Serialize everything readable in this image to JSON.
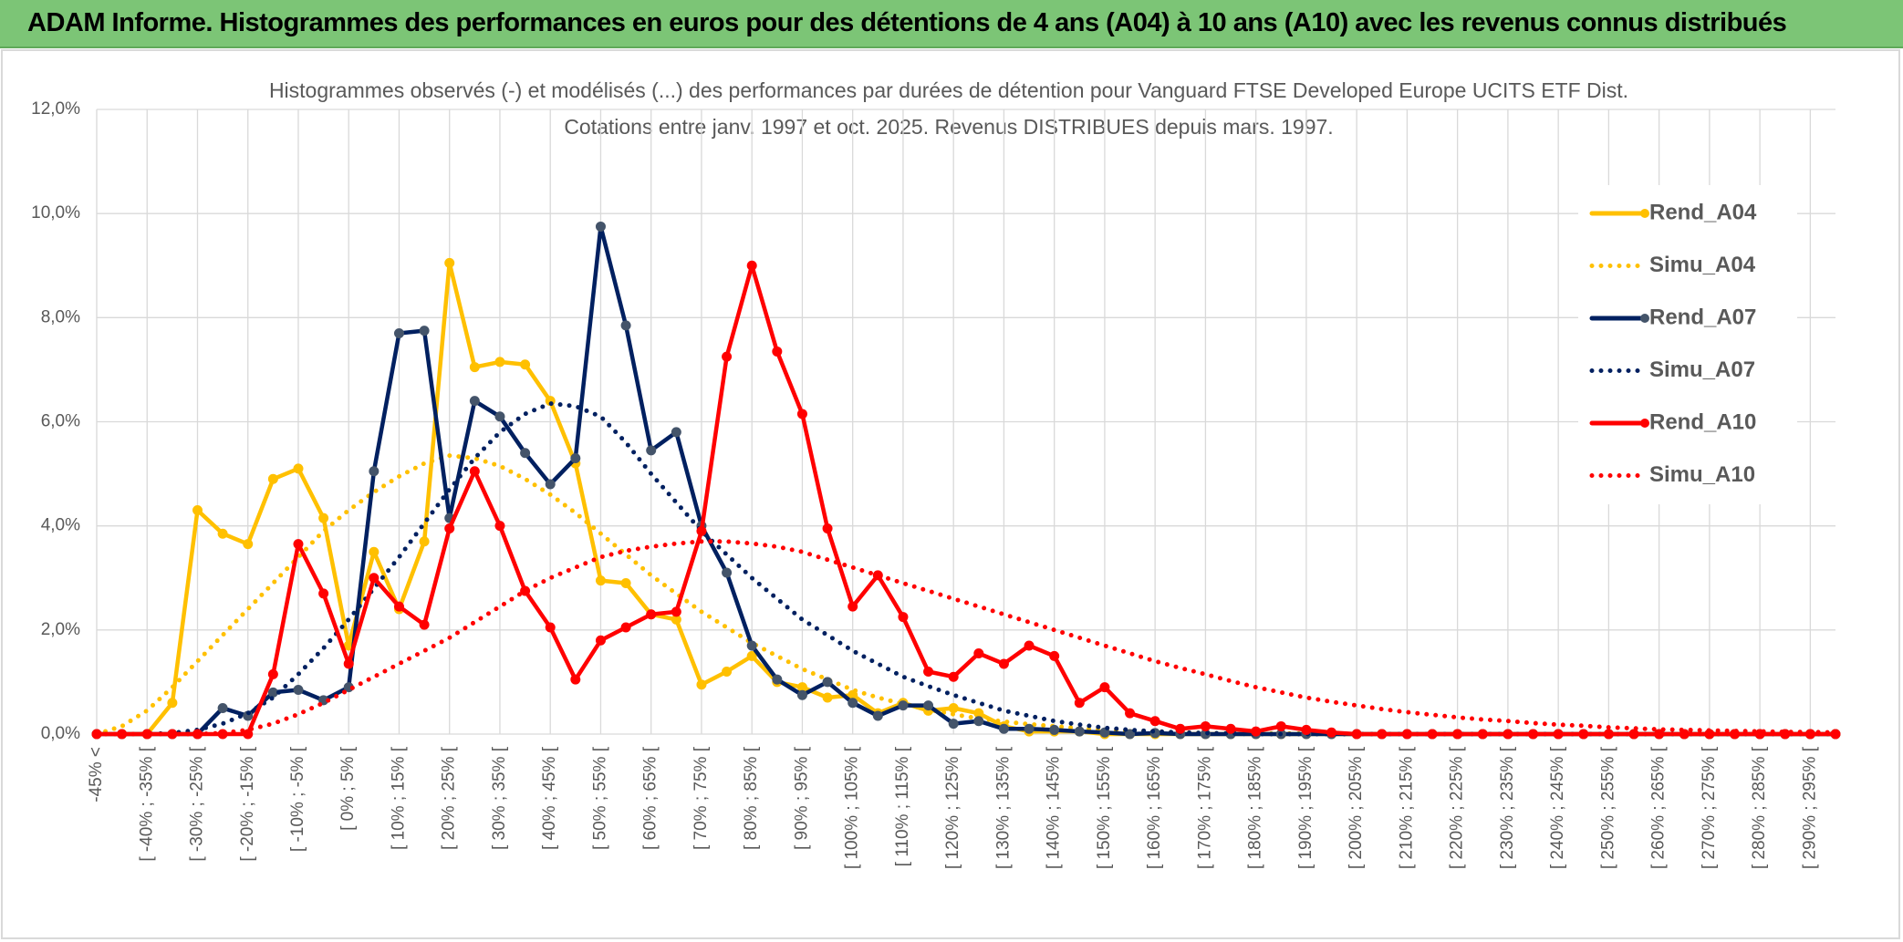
{
  "header": {
    "title": "ADAM Informe. Histogrammes des performances en euros pour des détentions de 4 ans (A04) à 10 ans (A10) avec les revenus connus distribués"
  },
  "chart_data": {
    "type": "line",
    "title": "Histogrammes observés (-) et modélisés (...) des performances par durées de détention pour Vanguard FTSE Developed Europe UCITS ETF Dist.",
    "subtitle": "Cotations entre janv. 1997 et oct. 2025. Revenus DISTRIBUES depuis mars. 1997.",
    "categories": [
      "-45% <",
      null,
      "[ -40% ; -35% [",
      null,
      "[ -30% ; -25% [",
      null,
      "[ -20% ; -15% [",
      null,
      "[ -10% ; -5% [",
      null,
      "[ 0% ; 5% [",
      null,
      "[ 10% ; 15% [",
      null,
      "[ 20% ; 25% [",
      null,
      "[ 30% ; 35% [",
      null,
      "[ 40% ; 45% [",
      null,
      "[ 50% ; 55% [",
      null,
      "[ 60% ; 65% [",
      null,
      "[ 70% ; 75% [",
      null,
      "[ 80% ; 85% [",
      null,
      "[ 90% ; 95% [",
      null,
      "[ 100% ; 105% [",
      null,
      "[ 110% ; 115% [",
      null,
      "[ 120% ; 125% [",
      null,
      "[ 130% ; 135% [",
      null,
      "[ 140% ; 145% [",
      null,
      "[ 150% ; 155% [",
      null,
      "[ 160% ; 165% [",
      null,
      "[ 170% ; 175% [",
      null,
      "[ 180% ; 185% [",
      null,
      "[ 190% ; 195% [",
      null,
      "[ 200% ; 205% [",
      null,
      "[ 210% ; 215% [",
      null,
      "[ 220% ; 225% [",
      null,
      "[ 230% ; 235% [",
      null,
      "[ 240% ; 245% [",
      null,
      "[ 250% ; 255% [",
      null,
      "[ 260% ; 265% [",
      null,
      "[ 270% ; 275% [",
      null,
      "[ 280% ; 285% [",
      null,
      "[ 290% ; 295% [",
      null
    ],
    "series": [
      {
        "name": "Rend_A04",
        "color": "#ffc000",
        "style": "solid",
        "markers": true,
        "marker_color": "#ffc000",
        "values": [
          0,
          0,
          0,
          0.6,
          4.3,
          3.85,
          3.65,
          4.9,
          5.1,
          4.15,
          1.7,
          3.5,
          2.4,
          3.7,
          9.05,
          7.05,
          7.15,
          7.1,
          6.4,
          5.2,
          2.95,
          2.9,
          2.3,
          2.2,
          0.95,
          1.2,
          1.5,
          1.0,
          0.9,
          0.7,
          0.75,
          0.4,
          0.6,
          0.45,
          0.5,
          0.4,
          0.15,
          0.05,
          0.05,
          0.05,
          0,
          0,
          0,
          0,
          0,
          0,
          0,
          0,
          0,
          0,
          0,
          0,
          0,
          0,
          0,
          0,
          0,
          0,
          0,
          0,
          0,
          0,
          0,
          0,
          0,
          0,
          0,
          0,
          0,
          0
        ]
      },
      {
        "name": "Simu_A04",
        "color": "#ffc000",
        "style": "dotted",
        "markers": false,
        "values": [
          0,
          0.15,
          0.45,
          0.9,
          1.4,
          1.9,
          2.4,
          2.9,
          3.4,
          3.9,
          4.3,
          4.65,
          4.95,
          5.2,
          5.35,
          5.3,
          5.15,
          4.9,
          4.6,
          4.25,
          3.85,
          3.45,
          3.05,
          2.7,
          2.35,
          2.05,
          1.75,
          1.5,
          1.25,
          1.05,
          0.85,
          0.7,
          0.58,
          0.47,
          0.38,
          0.3,
          0.24,
          0.19,
          0.15,
          0.11,
          0.08,
          0.06,
          0.05,
          0.03,
          0.02,
          0.01,
          0.01,
          0.01,
          0.01,
          0.01,
          0,
          0,
          0,
          0,
          0,
          0,
          0,
          0,
          0,
          0,
          0,
          0,
          0,
          0,
          0,
          0,
          0,
          0,
          0,
          0
        ]
      },
      {
        "name": "Rend_A07",
        "color": "#002060",
        "style": "solid",
        "markers": true,
        "marker_color": "#44546a",
        "values": [
          0,
          0,
          0,
          0,
          0,
          0.5,
          0.35,
          0.8,
          0.85,
          0.65,
          0.9,
          5.05,
          7.7,
          7.75,
          4.15,
          6.4,
          6.1,
          5.4,
          4.8,
          5.3,
          9.75,
          7.85,
          5.45,
          5.8,
          4.0,
          3.1,
          1.7,
          1.05,
          0.75,
          1.0,
          0.6,
          0.35,
          0.55,
          0.55,
          0.2,
          0.25,
          0.1,
          0.1,
          0.08,
          0.05,
          0.03,
          0,
          0.02,
          0,
          0,
          0,
          0,
          0,
          0,
          0,
          0,
          0,
          0,
          0,
          0,
          0,
          0,
          0,
          0,
          0,
          0,
          0,
          0,
          0,
          0,
          0,
          0,
          0,
          0,
          0
        ]
      },
      {
        "name": "Simu_A07",
        "color": "#002060",
        "style": "dotted",
        "markers": false,
        "values": [
          0,
          0,
          0,
          0.02,
          0.08,
          0.2,
          0.4,
          0.7,
          1.15,
          1.65,
          2.2,
          2.8,
          3.4,
          4.05,
          4.7,
          5.3,
          5.8,
          6.15,
          6.35,
          6.3,
          6.1,
          5.6,
          5.0,
          4.45,
          3.9,
          3.45,
          3.0,
          2.6,
          2.2,
          1.9,
          1.6,
          1.35,
          1.1,
          0.92,
          0.75,
          0.6,
          0.45,
          0.35,
          0.25,
          0.18,
          0.12,
          0.08,
          0.05,
          0.03,
          0.02,
          0.01,
          0,
          0,
          0,
          0,
          0,
          0,
          0,
          0,
          0,
          0,
          0,
          0,
          0,
          0,
          0,
          0,
          0,
          0,
          0,
          0,
          0,
          0,
          0,
          0
        ]
      },
      {
        "name": "Rend_A10",
        "color": "#ff0000",
        "style": "solid",
        "markers": true,
        "marker_color": "#ff0000",
        "values": [
          0,
          0,
          0,
          0,
          0,
          0,
          0,
          1.15,
          3.65,
          2.7,
          1.35,
          3.0,
          2.45,
          2.1,
          3.95,
          5.05,
          4.0,
          2.75,
          2.05,
          1.05,
          1.8,
          2.05,
          2.3,
          2.35,
          3.9,
          7.25,
          9.0,
          7.35,
          6.15,
          3.95,
          2.45,
          3.05,
          2.25,
          1.2,
          1.1,
          1.55,
          1.35,
          1.7,
          1.5,
          0.6,
          0.9,
          0.4,
          0.25,
          0.1,
          0.15,
          0.1,
          0.05,
          0.15,
          0.08,
          0.03,
          0,
          0,
          0,
          0,
          0,
          0,
          0,
          0,
          0,
          0,
          0,
          0,
          0,
          0,
          0,
          0,
          0,
          0,
          0,
          0
        ]
      },
      {
        "name": "Simu_A10",
        "color": "#ff0000",
        "style": "dotted",
        "markers": false,
        "values": [
          0,
          0,
          0,
          0,
          0,
          0.02,
          0.08,
          0.2,
          0.38,
          0.6,
          0.85,
          1.1,
          1.35,
          1.6,
          1.85,
          2.15,
          2.45,
          2.75,
          3.0,
          3.2,
          3.4,
          3.52,
          3.6,
          3.66,
          3.7,
          3.7,
          3.66,
          3.6,
          3.5,
          3.35,
          3.2,
          3.05,
          2.9,
          2.75,
          2.6,
          2.45,
          2.3,
          2.15,
          2.0,
          1.85,
          1.7,
          1.55,
          1.4,
          1.27,
          1.15,
          1.02,
          0.9,
          0.8,
          0.7,
          0.62,
          0.55,
          0.48,
          0.42,
          0.37,
          0.32,
          0.28,
          0.25,
          0.21,
          0.18,
          0.16,
          0.13,
          0.11,
          0.09,
          0.08,
          0.07,
          0.06,
          0.05,
          0.04,
          0.04,
          0.03
        ]
      }
    ],
    "ylim": [
      0,
      12
    ],
    "yticks": [
      {
        "value": 0,
        "label": "0,0%"
      },
      {
        "value": 2,
        "label": "2,0%"
      },
      {
        "value": 4,
        "label": "4,0%"
      },
      {
        "value": 6,
        "label": "6,0%"
      },
      {
        "value": 8,
        "label": "8,0%"
      },
      {
        "value": 10,
        "label": "10,0%"
      },
      {
        "value": 12,
        "label": "12,0%"
      }
    ],
    "grid": true,
    "legend": "right"
  }
}
